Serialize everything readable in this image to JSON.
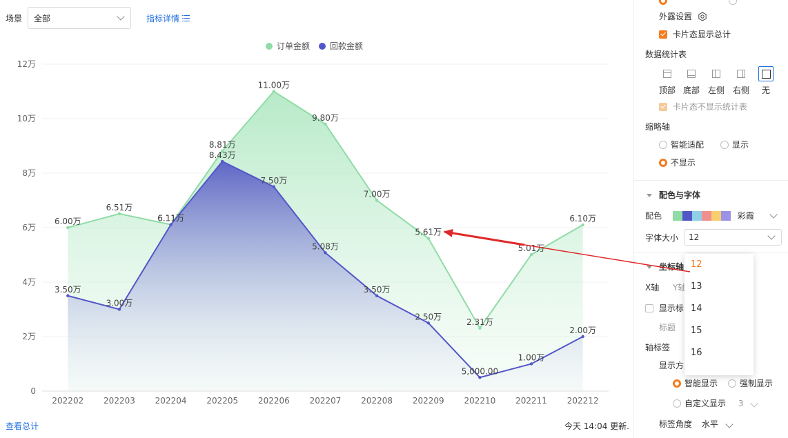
{
  "toolbar": {
    "scene_label": "场景",
    "scene_value": "全部",
    "detail_link": "指标详情"
  },
  "footer": {
    "view_total": "查看总计",
    "update_text": "今天 14:04 更新."
  },
  "chart_data": {
    "type": "area",
    "categories": [
      "202202",
      "202203",
      "202204",
      "202205",
      "202206",
      "202207",
      "202208",
      "202209",
      "202210",
      "202211",
      "202212"
    ],
    "series": [
      {
        "name": "订单金额",
        "color": "#8fdca6",
        "values": [
          60000,
          65100,
          61100,
          88100,
          110000,
          98000,
          70000,
          56100,
          23100,
          50100,
          61000
        ],
        "labels": [
          "6.00万",
          "6.51万",
          "6.11万",
          "8.81万",
          "11.00万",
          "9.80万",
          "7.00万",
          "5.61万",
          "2.31万",
          "5.01万",
          "6.10万"
        ]
      },
      {
        "name": "回款金额",
        "color": "#5356c8",
        "values": [
          35000,
          30000,
          61100,
          84300,
          75000,
          50800,
          35000,
          25000,
          5000,
          10000,
          20000
        ],
        "labels": [
          "3.50万",
          "3.00万",
          "6.11万",
          "8.43万",
          "7.50万",
          "5.08万",
          "3.50万",
          "2.50万",
          "5,000.00",
          "1.00万",
          "2.00万"
        ]
      }
    ],
    "yticks": [
      "0",
      "2万",
      "4万",
      "6万",
      "8万",
      "10万",
      "12万"
    ],
    "ylim": [
      0,
      120000
    ],
    "grid": true,
    "legend_position": "top-center"
  },
  "panel": {
    "exposure_settings": "外露设置",
    "card_show_total": "卡片态显示总计",
    "stats_table": "数据统计表",
    "positions": [
      "顶部",
      "底部",
      "左侧",
      "右侧",
      "无"
    ],
    "card_no_stats": "卡片态不显示统计表",
    "thumbnail_axis": "缩略轴",
    "thumb_options": [
      "智能适配",
      "显示",
      "不显示"
    ],
    "color_font": "配色与字体",
    "palette_label": "配色",
    "palette_name": "彩霞",
    "palette_colors": [
      "#8fdca6",
      "#5356c8",
      "#8fcfe8",
      "#f08f8f",
      "#f7cf6f",
      "#9b93e6"
    ],
    "font_size_label": "字体大小",
    "font_size_value": "12",
    "font_size_options": [
      "12",
      "13",
      "14",
      "15",
      "16"
    ],
    "axis_section": "坐标轴",
    "x_axis": "X轴",
    "y_axis": "Y轴",
    "show_title": "显示标",
    "title_placeholder": "标题",
    "axis_label": "轴标签",
    "display_mode": "显示方",
    "label_options": [
      "智能显示",
      "强制显示",
      "自定义显示"
    ],
    "custom_count": "3",
    "label_angle": "标签角度",
    "label_angle_value": "水平"
  }
}
